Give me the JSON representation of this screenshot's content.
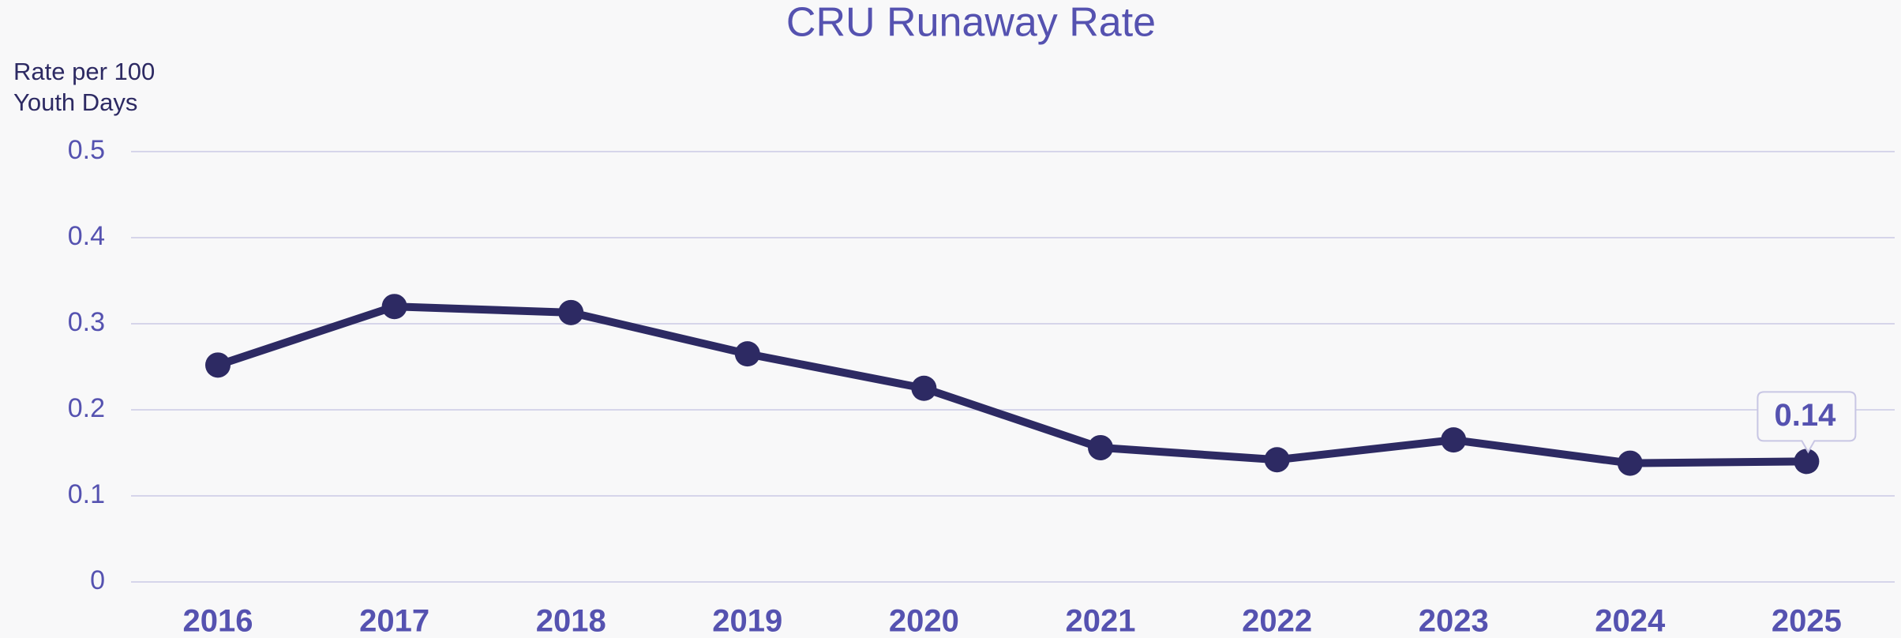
{
  "chart_data": {
    "type": "line",
    "title": "CRU Runaway Rate",
    "y_label": [
      "Rate per 100",
      "Youth Days"
    ],
    "categories": [
      "2016",
      "2017",
      "2018",
      "2019",
      "2020",
      "2021",
      "2022",
      "2023",
      "2024",
      "2025"
    ],
    "series": [
      {
        "name": "CRU Runaway Rate",
        "color": "#2d2a63",
        "values": [
          0.252,
          0.32,
          0.313,
          0.265,
          0.225,
          0.156,
          0.142,
          0.165,
          0.138,
          0.14
        ]
      }
    ],
    "ylim": [
      0,
      0.5
    ],
    "yticks": [
      0,
      0.1,
      0.2,
      0.3,
      0.4,
      0.5
    ],
    "grid": true
  }
}
